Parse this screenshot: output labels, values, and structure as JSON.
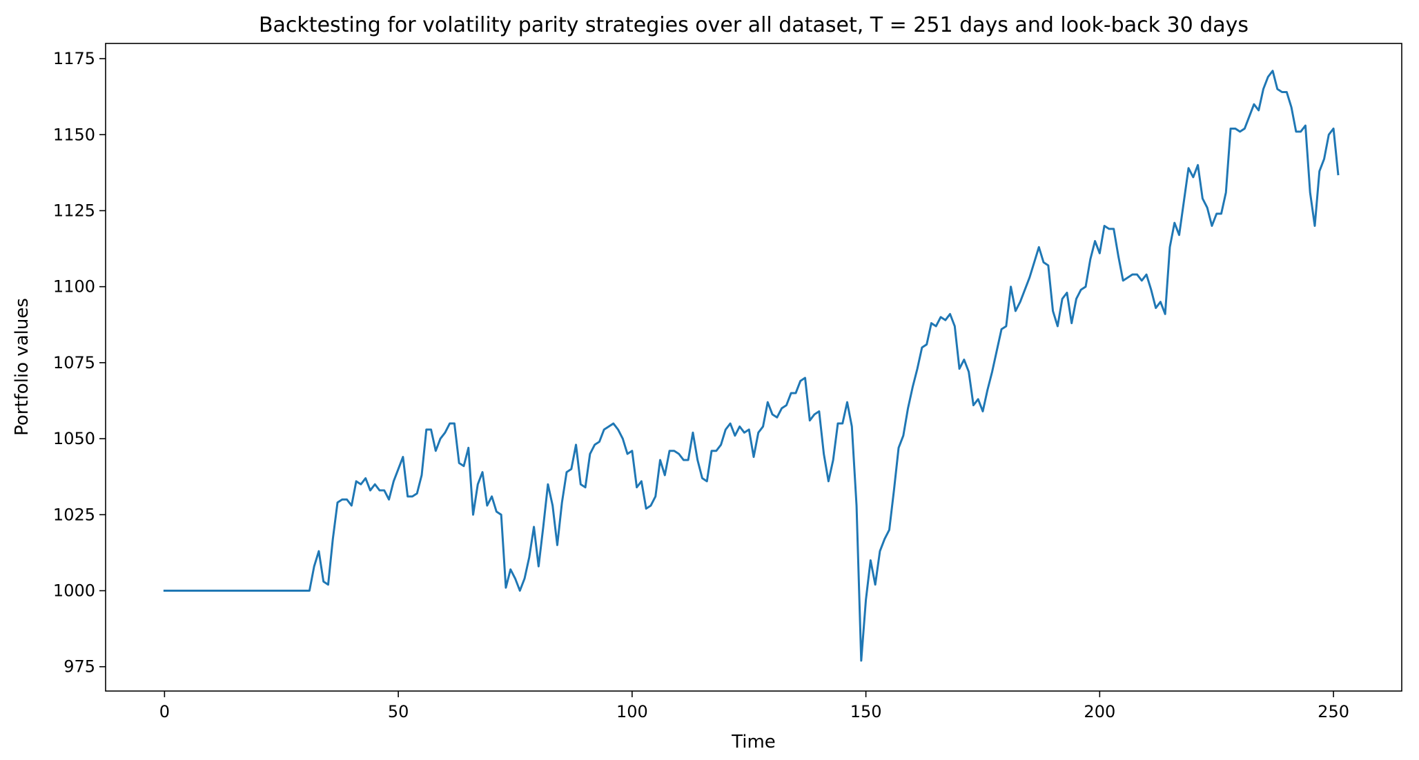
{
  "chart_data": {
    "type": "line",
    "title": "Backtesting for volatility parity strategies over all dataset, T = 251 days and look-back 30 days",
    "xlabel": "Time",
    "ylabel": "Portfolio values",
    "xlim": [
      -12.6,
      264.6
    ],
    "ylim": [
      967,
      1180
    ],
    "xticks": [
      0,
      50,
      100,
      150,
      200,
      250
    ],
    "yticks": [
      975,
      1000,
      1025,
      1050,
      1075,
      1100,
      1125,
      1150,
      1175
    ],
    "xtick_labels": [
      "0",
      "50",
      "100",
      "150",
      "200",
      "250"
    ],
    "ytick_labels": [
      "975",
      "1000",
      "1025",
      "1050",
      "1075",
      "1100",
      "1125",
      "1150",
      "1175"
    ],
    "grid": false,
    "legend": "none",
    "series": [
      {
        "color": "#1f77b4",
        "x": [
          0,
          1,
          2,
          3,
          4,
          5,
          6,
          7,
          8,
          9,
          10,
          11,
          12,
          13,
          14,
          15,
          16,
          17,
          18,
          19,
          20,
          21,
          22,
          23,
          24,
          25,
          26,
          27,
          28,
          29,
          30,
          31,
          32,
          33,
          34,
          35,
          36,
          37,
          38,
          39,
          40,
          41,
          42,
          43,
          44,
          45,
          46,
          47,
          48,
          49,
          50,
          51,
          52,
          53,
          54,
          55,
          56,
          57,
          58,
          59,
          60,
          61,
          62,
          63,
          64,
          65,
          66,
          67,
          68,
          69,
          70,
          71,
          72,
          73,
          74,
          75,
          76,
          77,
          78,
          79,
          80,
          81,
          82,
          83,
          84,
          85,
          86,
          87,
          88,
          89,
          90,
          91,
          92,
          93,
          94,
          95,
          96,
          97,
          98,
          99,
          100,
          101,
          102,
          103,
          104,
          105,
          106,
          107,
          108,
          109,
          110,
          111,
          112,
          113,
          114,
          115,
          116,
          117,
          118,
          119,
          120,
          121,
          122,
          123,
          124,
          125,
          126,
          127,
          128,
          129,
          130,
          131,
          132,
          133,
          134,
          135,
          136,
          137,
          138,
          139,
          140,
          141,
          142,
          143,
          144,
          145,
          146,
          147,
          148,
          149,
          150,
          151,
          152,
          153,
          154,
          155,
          156,
          157,
          158,
          159,
          160,
          161,
          162,
          163,
          164,
          165,
          166,
          167,
          168,
          169,
          170,
          171,
          172,
          173,
          174,
          175,
          176,
          177,
          178,
          179,
          180,
          181,
          182,
          183,
          184,
          185,
          186,
          187,
          188,
          189,
          190,
          191,
          192,
          193,
          194,
          195,
          196,
          197,
          198,
          199,
          200,
          201,
          202,
          203,
          204,
          205,
          206,
          207,
          208,
          209,
          210,
          211,
          212,
          213,
          214,
          215,
          216,
          217,
          218,
          219,
          220,
          221,
          222,
          223,
          224,
          225,
          226,
          227,
          228,
          229,
          230,
          231,
          232,
          233,
          234,
          235,
          236,
          237,
          238,
          239,
          240,
          241,
          242,
          243,
          244,
          245,
          246,
          247,
          248,
          249,
          250,
          251
        ],
        "y": [
          1000,
          1000,
          1000,
          1000,
          1000,
          1000,
          1000,
          1000,
          1000,
          1000,
          1000,
          1000,
          1000,
          1000,
          1000,
          1000,
          1000,
          1000,
          1000,
          1000,
          1000,
          1000,
          1000,
          1000,
          1000,
          1000,
          1000,
          1000,
          1000,
          1000,
          1000,
          1000,
          1008,
          1013,
          1003,
          1002,
          1017,
          1029,
          1030,
          1030,
          1028,
          1036,
          1035,
          1037,
          1033,
          1035,
          1033,
          1033,
          1030,
          1036,
          1040,
          1044,
          1031,
          1031,
          1032,
          1038,
          1053,
          1053,
          1046,
          1050,
          1052,
          1055,
          1055,
          1042,
          1041,
          1047,
          1025,
          1035,
          1039,
          1028,
          1031,
          1026,
          1025,
          1001,
          1007,
          1004,
          1000,
          1004,
          1011,
          1021,
          1008,
          1021,
          1035,
          1028,
          1015,
          1029,
          1039,
          1040,
          1048,
          1035,
          1034,
          1045,
          1048,
          1049,
          1053,
          1054,
          1055,
          1053,
          1050,
          1045,
          1046,
          1034,
          1036,
          1027,
          1028,
          1031,
          1043,
          1038,
          1046,
          1046,
          1045,
          1043,
          1043,
          1052,
          1043,
          1037,
          1036,
          1046,
          1046,
          1048,
          1053,
          1055,
          1051,
          1054,
          1052,
          1053,
          1044,
          1052,
          1054,
          1062,
          1058,
          1057,
          1060,
          1061,
          1065,
          1065,
          1069,
          1070,
          1056,
          1058,
          1059,
          1045,
          1036,
          1043,
          1055,
          1055,
          1062,
          1054,
          1028,
          977,
          997,
          1010,
          1002,
          1013,
          1017,
          1020,
          1033,
          1047,
          1051,
          1060,
          1067,
          1073,
          1080,
          1081,
          1088,
          1087,
          1090,
          1089,
          1091,
          1087,
          1073,
          1076,
          1072,
          1061,
          1063,
          1059,
          1066,
          1072,
          1079,
          1086,
          1087,
          1100,
          1092,
          1095,
          1099,
          1103,
          1108,
          1113,
          1108,
          1107,
          1092,
          1087,
          1096,
          1098,
          1088,
          1096,
          1099,
          1100,
          1109,
          1115,
          1111,
          1120,
          1119,
          1119,
          1110,
          1102,
          1103,
          1104,
          1104,
          1102,
          1104,
          1099,
          1093,
          1095,
          1091,
          1113,
          1121,
          1117,
          1128,
          1139,
          1136,
          1140,
          1129,
          1126,
          1120,
          1124,
          1124,
          1131,
          1152,
          1152,
          1151,
          1152,
          1156,
          1160,
          1158,
          1165,
          1169,
          1171,
          1165,
          1164,
          1164,
          1159,
          1151,
          1151,
          1153,
          1131,
          1120,
          1138,
          1142,
          1150,
          1152,
          1137
        ]
      }
    ]
  }
}
